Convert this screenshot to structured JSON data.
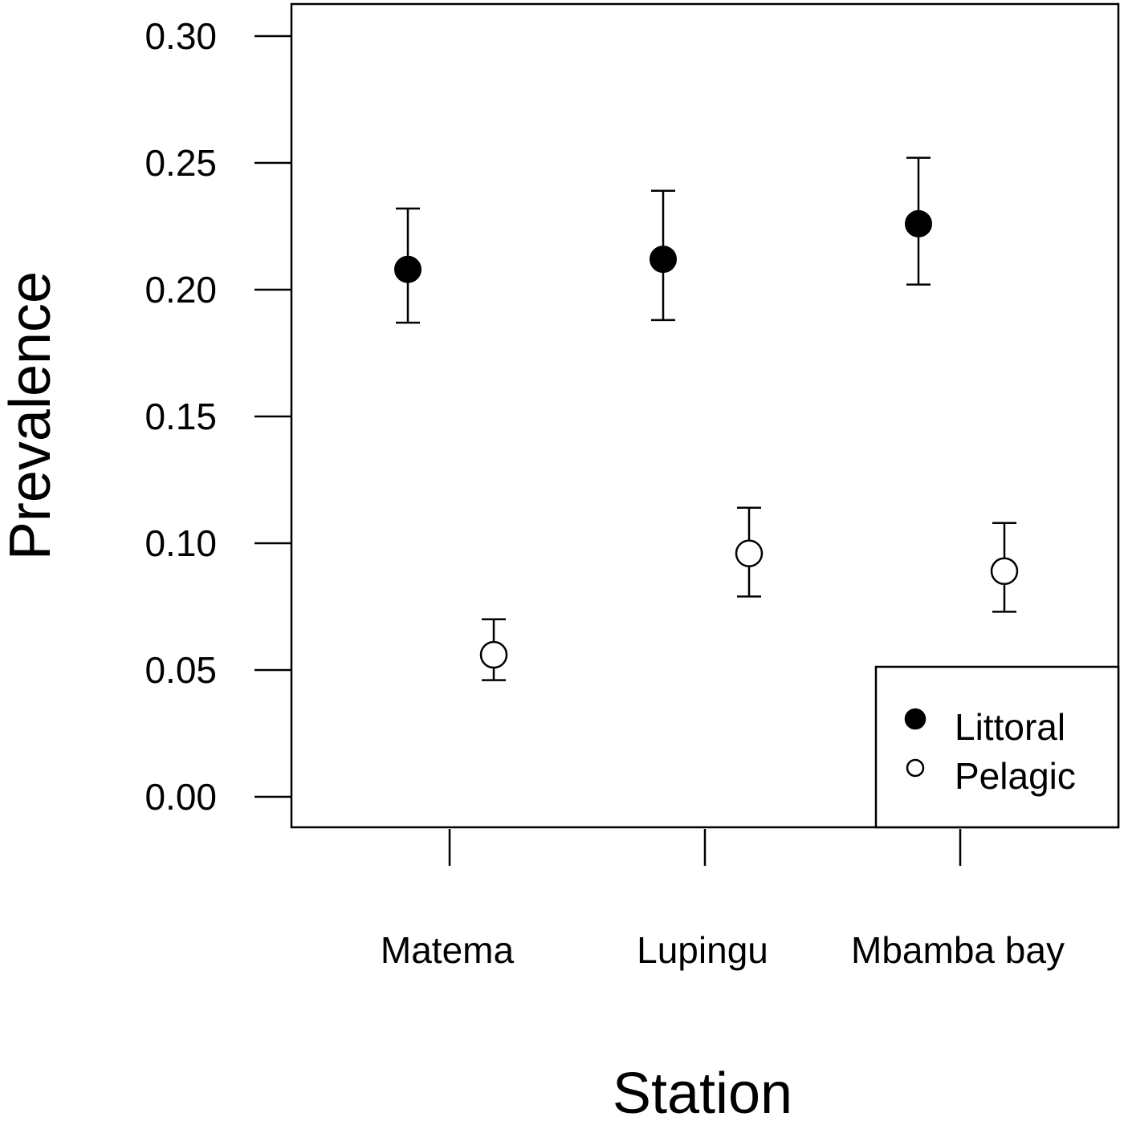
{
  "chart_data": {
    "type": "scatter",
    "title": "",
    "xlabel": "Station",
    "ylabel": "Prevalence",
    "categories": [
      "Matema",
      "Lupingu",
      "Mbamba bay"
    ],
    "ylim": [
      0.0,
      0.31
    ],
    "yticks": [
      0.0,
      0.05,
      0.1,
      0.15,
      0.2,
      0.25,
      0.3
    ],
    "ytick_labels": [
      "0.00",
      "0.05",
      "0.10",
      "0.15",
      "0.20",
      "0.25",
      "0.30"
    ],
    "grid": false,
    "legend_position": "bottom-right",
    "series": [
      {
        "name": "Littoral",
        "marker": "filled-circle",
        "color": "#000000",
        "offset": "left",
        "values": [
          0.208,
          0.212,
          0.226
        ],
        "lower": [
          0.187,
          0.188,
          0.202
        ],
        "upper": [
          0.232,
          0.239,
          0.252
        ]
      },
      {
        "name": "Pelagic",
        "marker": "open-circle",
        "color": "#000000",
        "offset": "right",
        "values": [
          0.056,
          0.096,
          0.089
        ],
        "lower": [
          0.046,
          0.079,
          0.073
        ],
        "upper": [
          0.07,
          0.114,
          0.108
        ]
      }
    ]
  }
}
